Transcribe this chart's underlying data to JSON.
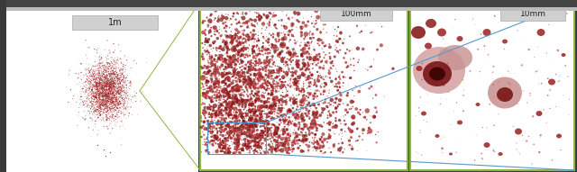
{
  "bg_color": "#3a3a3a",
  "panel_bg": "#ffffff",
  "border_color_green": "#8ab840",
  "border_color_blue": "#5599cc",
  "label_1m": "1m",
  "label_100mm": "100mm",
  "label_10mm": "10mm",
  "label_bg": "#d0d0d0",
  "label_text_color": "#222222",
  "toolbar_color": "#444444",
  "ruler_color": "#cccccc",
  "spatter_color_dark": "#8b1a1a",
  "spatter_color_mid": "#b03030",
  "spatter_color_light": "#cc5555",
  "seed": 17
}
